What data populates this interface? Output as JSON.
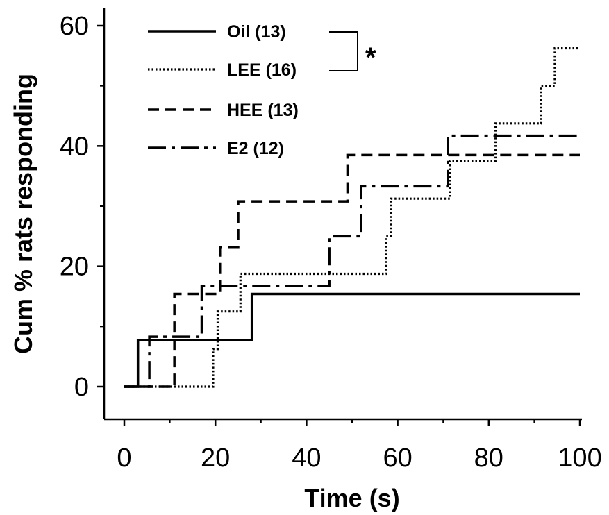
{
  "chart_data": {
    "type": "line",
    "step": true,
    "xlabel": "Time (s)",
    "ylabel": "Cum % rats responding",
    "xlim": [
      0,
      100
    ],
    "ylim": [
      -5,
      61
    ],
    "xticks": [
      0,
      20,
      40,
      60,
      80,
      100
    ],
    "yticks": [
      0,
      20,
      40,
      60
    ],
    "grid": false,
    "legend_position": "top-left",
    "significance": "*",
    "significance_pair": [
      "Oil (13)",
      "LEE (16)"
    ],
    "series": [
      {
        "name": "Oil (13)",
        "style": "solid",
        "x": [
          0,
          3,
          28,
          100
        ],
        "y": [
          0,
          7.7,
          15.4,
          15.4
        ]
      },
      {
        "name": "LEE (16)",
        "style": "dotted",
        "x": [
          0,
          19.5,
          20.5,
          25.5,
          57.5,
          58.5,
          71.5,
          81.5,
          91.5,
          94.5,
          100
        ],
        "y": [
          0,
          6.25,
          12.5,
          18.75,
          25,
          31.25,
          37.5,
          43.75,
          50,
          56.25,
          56.25
        ]
      },
      {
        "name": "HEE (13)",
        "style": "dashed",
        "x": [
          0,
          11,
          21,
          25,
          49,
          100
        ],
        "y": [
          0,
          15.4,
          23.1,
          30.8,
          38.5,
          38.5
        ]
      },
      {
        "name": "E2 (12)",
        "style": "dashdot",
        "x": [
          0,
          5.5,
          14,
          17,
          45,
          52,
          71,
          100
        ],
        "y": [
          0,
          8.3,
          8.3,
          16.7,
          25,
          33.3,
          41.7,
          41.7
        ]
      }
    ]
  }
}
